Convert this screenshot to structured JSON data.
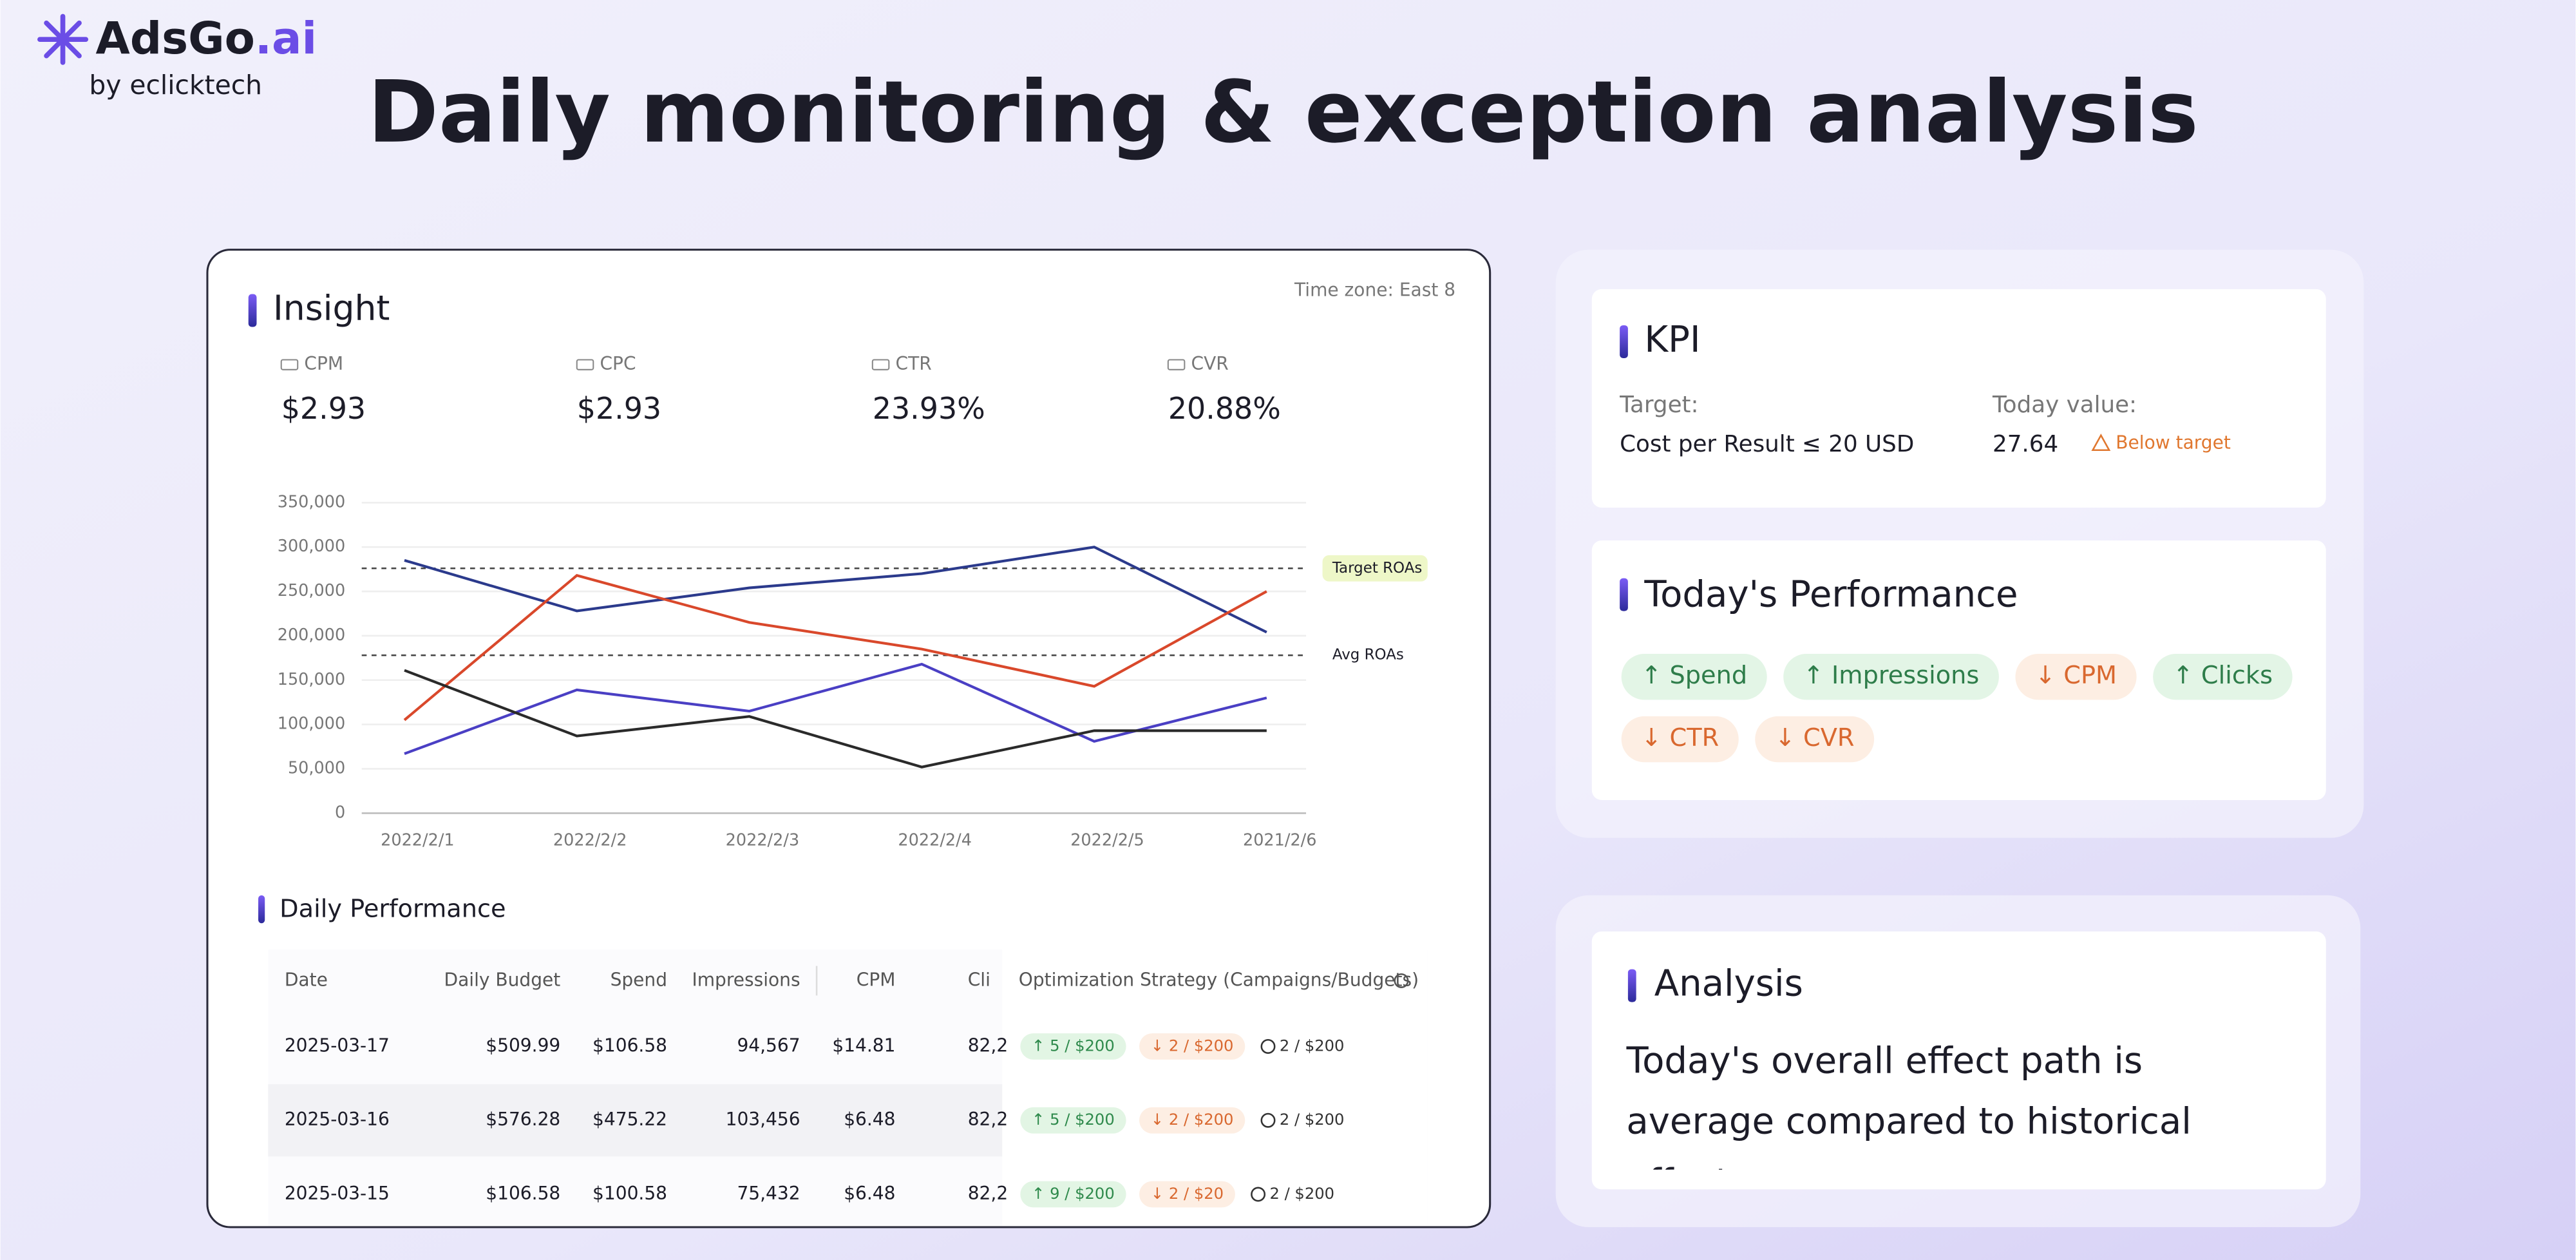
{
  "header": {
    "brand": {
      "name": "AdsGo",
      "suffix": ".ai"
    },
    "byline": "by eclicktech",
    "title": "Daily monitoring & exception analysis"
  },
  "insight": {
    "title": "Insight",
    "timezone": "Time zone: East 8",
    "metrics": [
      {
        "label": "CPM",
        "value": "$2.93"
      },
      {
        "label": "CPC",
        "value": "$2.93"
      },
      {
        "label": "CTR",
        "value": "23.93%"
      },
      {
        "label": "CVR",
        "value": "20.88%"
      }
    ]
  },
  "chart_data": {
    "type": "line",
    "categories": [
      "2022/2/1",
      "2022/2/2",
      "2022/2/3",
      "2022/2/4",
      "2022/2/5",
      "2021/2/6"
    ],
    "series": [
      {
        "color": "#2b3a8c",
        "values": [
          285000,
          228000,
          254000,
          270000,
          300000,
          204000
        ]
      },
      {
        "color": "#d9482b",
        "values": [
          105000,
          268000,
          215000,
          185000,
          143000,
          250000
        ]
      },
      {
        "color": "#4a3fc4",
        "values": [
          67000,
          139000,
          115000,
          168000,
          81000,
          130000
        ]
      },
      {
        "color": "#2a2a2a",
        "values": [
          161000,
          87000,
          109000,
          52000,
          93000,
          93000
        ]
      }
    ],
    "ylim": [
      0,
      350000
    ],
    "yticks": [
      0,
      {
        "value": 50000,
        "label": "50,000"
      },
      {
        "value": 100000,
        "label": "100,000"
      },
      {
        "value": 150000,
        "label": "150,000"
      },
      {
        "value": 200000,
        "label": "200,000"
      },
      {
        "value": 250000,
        "label": "250,000"
      },
      {
        "value": 300000,
        "label": "300,000"
      },
      {
        "value": 350000,
        "label": "350,000"
      }
    ],
    "grid": true,
    "reference_lines": [
      {
        "label": "Target ROAs",
        "value": 276000,
        "highlight": true
      },
      {
        "label": "Avg ROAs",
        "value": 178000,
        "highlight": false
      }
    ]
  },
  "daily_performance": {
    "title": "Daily Performance",
    "columns": [
      "Date",
      "Daily Budget",
      "Spend",
      "Impressions",
      "CPM",
      "Cli",
      "Optimization Strategy (Campaigns/Budgets)"
    ],
    "rows": [
      {
        "cells": [
          "2025-03-17",
          "$509.99",
          "$106.58",
          "94,567",
          "$14.81",
          "82,2"
        ],
        "strategy": [
          {
            "text": "↑ 5 / $200",
            "status": "up"
          },
          {
            "text": "↓ 2 / $200",
            "status": "down"
          },
          {
            "text": "2 / $200",
            "status": "neutral"
          }
        ]
      },
      {
        "cells": [
          "2025-03-16",
          "$576.28",
          "$475.22",
          "103,456",
          "$6.48",
          "82,2"
        ],
        "strategy": [
          {
            "text": "↑ 5 / $200",
            "status": "up"
          },
          {
            "text": "↓ 2 / $200",
            "status": "down"
          },
          {
            "text": "2 / $200",
            "status": "neutral"
          }
        ]
      },
      {
        "cells": [
          "2025-03-15",
          "$106.58",
          "$100.58",
          "75,432",
          "$6.48",
          "82,2"
        ],
        "strategy": [
          {
            "text": "↑ 9 / $200",
            "status": "up"
          },
          {
            "text": "↓ 2 / $20",
            "status": "down"
          },
          {
            "text": "2 / $200",
            "status": "neutral"
          }
        ]
      }
    ]
  },
  "kpi": {
    "title": "KPI",
    "target_label": "Target:",
    "target": "Cost per Result ≤ 20 USD",
    "today_label": "Today value:",
    "today_value": "27.64",
    "status": "Below target"
  },
  "todays_performance": {
    "title": "Today's Performance",
    "tags": [
      {
        "label": "↑ Spend",
        "trend": "up"
      },
      {
        "label": "↑ Impressions",
        "trend": "up"
      },
      {
        "label": "↓ CPM",
        "trend": "down"
      },
      {
        "label": "↑ Clicks",
        "trend": "up"
      },
      {
        "label": "↓ CTR",
        "trend": "down"
      },
      {
        "label": "↓ CVR",
        "trend": "down"
      }
    ]
  },
  "analysis": {
    "title": "Analysis",
    "text": "Today's overall effect path is average compared to historical effects."
  }
}
